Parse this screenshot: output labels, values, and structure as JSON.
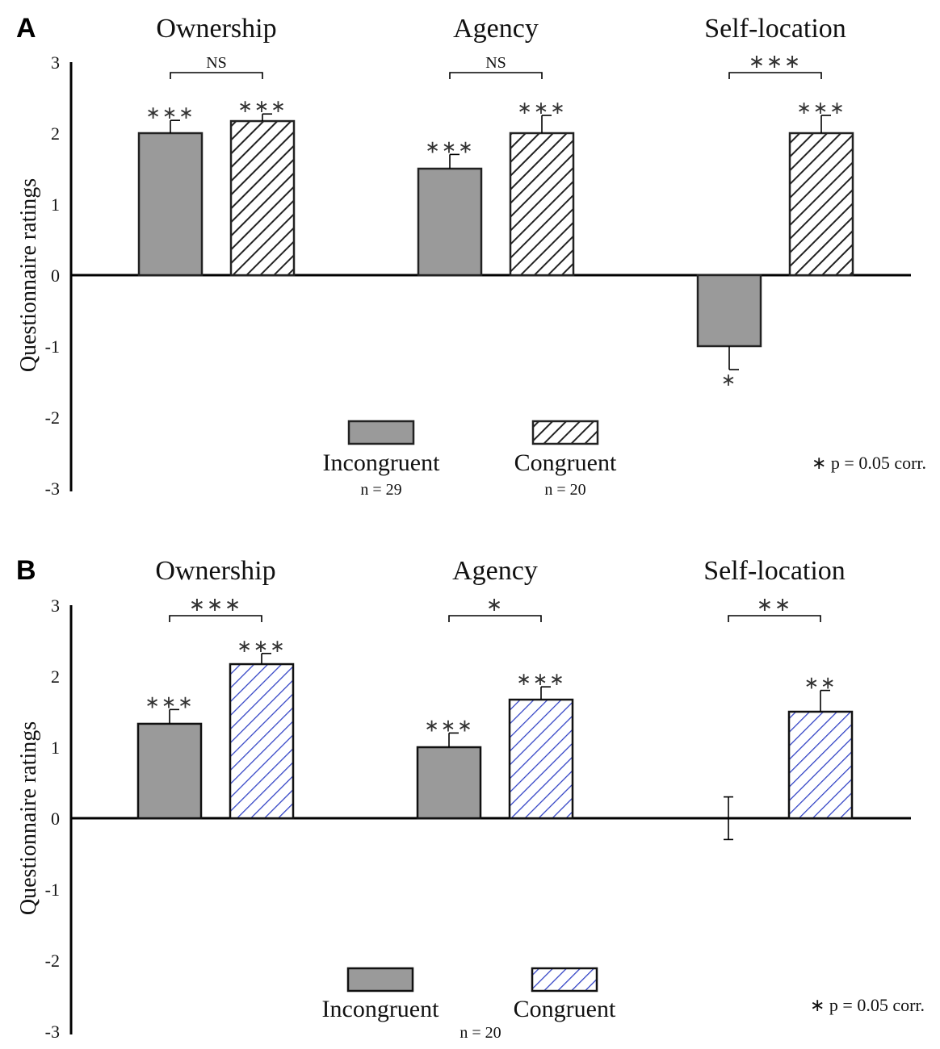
{
  "chart_data": [
    {
      "panel": "A",
      "type": "bar",
      "ylabel": "Questionnaire ratings",
      "ylim": [
        -3,
        3
      ],
      "yticks": [
        "3",
        "2",
        "1",
        "0",
        "-1",
        "-2",
        "-3"
      ],
      "categories": [
        "Ownership",
        "Agency",
        "Self-location"
      ],
      "series": [
        {
          "name": "Incongruent",
          "pattern": "solid",
          "values": [
            2.0,
            1.5,
            -1.0
          ],
          "errors": [
            0.18,
            0.2,
            0.33
          ],
          "stars": [
            "***",
            "***",
            "*"
          ]
        },
        {
          "name": "Congruent",
          "pattern": "hatch",
          "color": "#222222",
          "values": [
            2.17,
            2.0,
            2.0
          ],
          "errors": [
            0.1,
            0.25,
            0.25
          ],
          "stars": [
            "***",
            "***",
            "***"
          ]
        }
      ],
      "comparisons": [
        "NS",
        "NS",
        "***"
      ],
      "legend": [
        {
          "label": "Incongruent",
          "n": "n = 29"
        },
        {
          "label": "Congruent",
          "n": "n = 20"
        }
      ],
      "note": "∗ p = 0.05 corr."
    },
    {
      "panel": "B",
      "type": "bar",
      "ylabel": "Questionnaire ratings",
      "ylim": [
        -3,
        3
      ],
      "yticks": [
        "3",
        "2",
        "1",
        "0",
        "-1",
        "-2",
        "-3"
      ],
      "categories": [
        "Ownership",
        "Agency",
        "Self-location"
      ],
      "series": [
        {
          "name": "Incongruent",
          "pattern": "solid",
          "values": [
            1.33,
            1.0,
            0.0
          ],
          "errors": [
            0.2,
            0.2,
            0.3
          ],
          "stars": [
            "***",
            "***",
            ""
          ]
        },
        {
          "name": "Congruent",
          "pattern": "hatch",
          "color": "#2e3fc4",
          "values": [
            2.17,
            1.67,
            1.5
          ],
          "errors": [
            0.15,
            0.18,
            0.3
          ],
          "stars": [
            "***",
            "***",
            "**"
          ]
        }
      ],
      "comparisons": [
        "***",
        "*",
        "**"
      ],
      "legend": [
        {
          "label": "Incongruent",
          "n": ""
        },
        {
          "label": "Congruent",
          "n": ""
        }
      ],
      "shared_n": "n = 20",
      "note": "∗ p = 0.05 corr."
    }
  ],
  "colors": {
    "incongruent_fill": "#9a9a9a",
    "axis": "#000000"
  }
}
